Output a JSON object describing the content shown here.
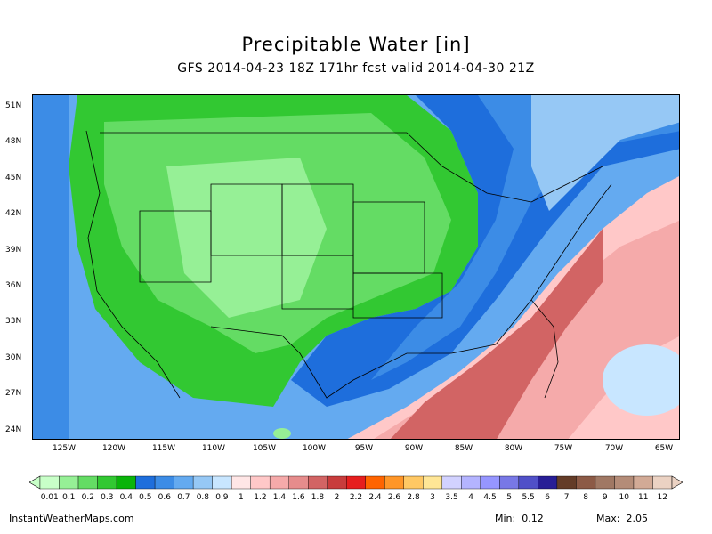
{
  "header": {
    "title": "Precipitable Water [in]",
    "subtitle": "GFS 2014-04-23 18Z 171hr fcst valid 2014-04-30 21Z"
  },
  "map": {
    "lat_labels": [
      "51N",
      "48N",
      "45N",
      "42N",
      "39N",
      "36N",
      "33N",
      "30N",
      "27N",
      "24N"
    ],
    "lon_labels": [
      "125W",
      "120W",
      "115W",
      "110W",
      "105W",
      "100W",
      "95W",
      "90W",
      "85W",
      "80W",
      "75W",
      "70W",
      "65W"
    ]
  },
  "colorbar": {
    "labels": [
      "0.01",
      "0.1",
      "0.2",
      "0.3",
      "0.4",
      "0.5",
      "0.6",
      "0.7",
      "0.8",
      "0.9",
      "1",
      "1.2",
      "1.4",
      "1.6",
      "1.8",
      "2",
      "2.2",
      "2.4",
      "2.6",
      "2.8",
      "3",
      "3.5",
      "4",
      "4.5",
      "5",
      "5.5",
      "6",
      "7",
      "8",
      "9",
      "10",
      "11",
      "12"
    ],
    "colors": [
      "#c8ffc8",
      "#96f096",
      "#64dc64",
      "#32c832",
      "#0ab40a",
      "#1e6edc",
      "#3c8ce6",
      "#64aaf0",
      "#96c8f5",
      "#c8e6ff",
      "#ffe6e6",
      "#ffc8c8",
      "#f5aaaa",
      "#e68c8c",
      "#d26464",
      "#c83c3c",
      "#e61e1e",
      "#ff6400",
      "#ff9628",
      "#ffc864",
      "#ffe696",
      "#d2d2ff",
      "#b4b4ff",
      "#9696ff",
      "#7878e6",
      "#5050c8",
      "#281e96",
      "#643c28",
      "#8c5a46",
      "#a07864",
      "#b48c78",
      "#d2aa96",
      "#ebd2c3"
    ]
  },
  "footer": {
    "site": "InstantWeatherMaps.com",
    "min_label": "Min:",
    "min_value": "0.12",
    "max_label": "Max:",
    "max_value": "2.05"
  }
}
